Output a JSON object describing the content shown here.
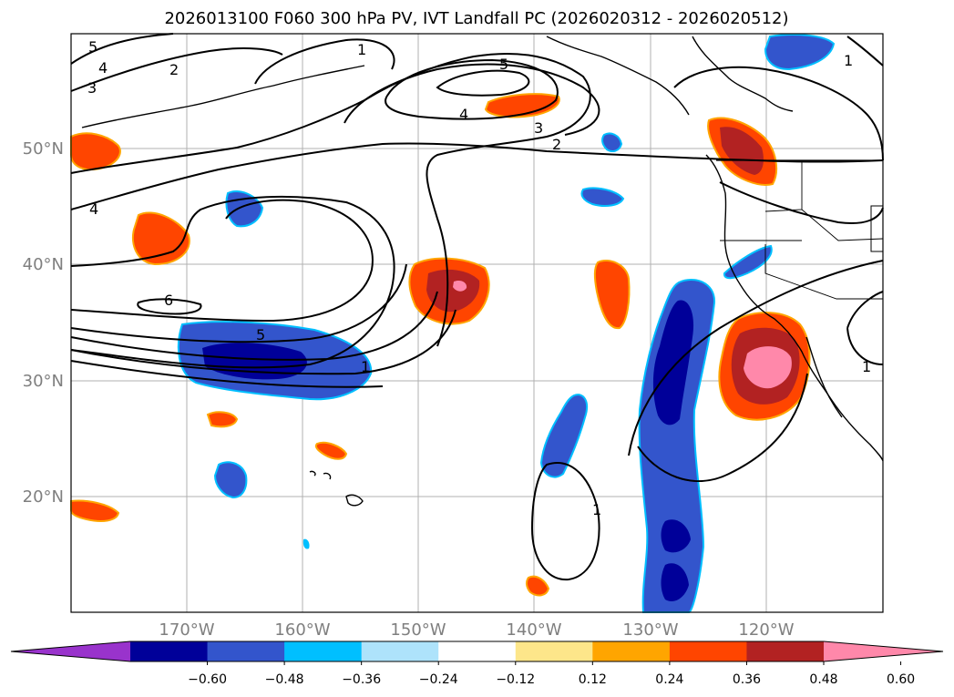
{
  "title": "2026013100 F060 300 hPa PV, IVT Landfall PC (2026020312 - 2026020512)",
  "latitude_labels": [
    "50°N",
    "40°N",
    "30°N",
    "20°N"
  ],
  "longitude_labels": [
    "170°W",
    "160°W",
    "150°W",
    "140°W",
    "130°W",
    "120°W"
  ],
  "colorbar": {
    "colors": [
      "#9933cc",
      "#000099",
      "#3355cc",
      "#00bfff",
      "#aee3fb",
      "#ffffff",
      "#fde68a",
      "#ffa500",
      "#ff4500",
      "#b22222",
      "#ff88aa"
    ],
    "tick_labels": [
      "−0.60",
      "−0.48",
      "−0.36",
      "−0.24",
      "−0.12",
      "0.12",
      "0.24",
      "0.36",
      "0.48",
      "0.60"
    ]
  },
  "pv_contour_labels": [
    "5",
    "4",
    "3",
    "2",
    "1",
    "5",
    "4",
    "3",
    "2",
    "4",
    "6",
    "5",
    "1",
    "1",
    "1",
    "1"
  ],
  "colors": {
    "coast": "#000000",
    "grid": "#b0b0b0",
    "contour": "#000000"
  }
}
